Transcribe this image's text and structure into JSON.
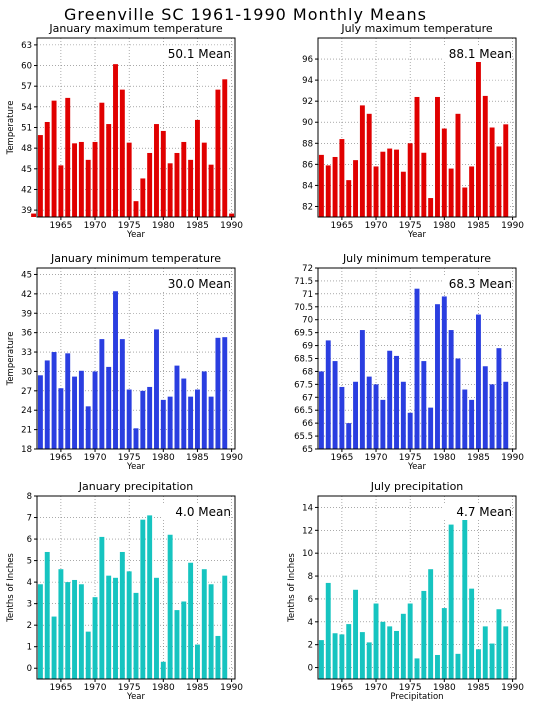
{
  "page_title": "Greenville SC   1961-1990  Monthly Means",
  "colors": {
    "red": "#e00000",
    "blue": "#2a3ee0",
    "teal": "#16c4c0"
  },
  "chart_data": [
    {
      "type": "bar",
      "title": "January maximum temperature",
      "annotation": "50.1 Mean",
      "ylabel": "Temperature",
      "xlabel": "Year",
      "color": "red",
      "grid": true,
      "x": [
        1961,
        1962,
        1963,
        1964,
        1965,
        1966,
        1967,
        1968,
        1969,
        1970,
        1971,
        1972,
        1973,
        1974,
        1975,
        1976,
        1977,
        1978,
        1979,
        1980,
        1981,
        1982,
        1983,
        1984,
        1985,
        1986,
        1987,
        1988,
        1989,
        1990
      ],
      "values": [
        38.5,
        49.9,
        51.8,
        54.9,
        45.5,
        55.3,
        48.7,
        48.9,
        46.3,
        48.9,
        54.6,
        51.5,
        60.2,
        56.5,
        48.8,
        40.3,
        43.6,
        47.3,
        51.5,
        50.5,
        45.8,
        47.3,
        48.9,
        46.3,
        52.1,
        48.8,
        45.6,
        56.5,
        58.0,
        38.5
      ],
      "ylim": [
        38,
        64
      ],
      "yticks": [
        39,
        42,
        45,
        48,
        51,
        54,
        57,
        60,
        63
      ],
      "xticks": [
        1965,
        1970,
        1975,
        1980,
        1985,
        1990
      ]
    },
    {
      "type": "bar",
      "title": "July maximum temperature",
      "annotation": "88.1 Mean",
      "ylabel": "",
      "xlabel": "Year",
      "color": "red",
      "grid": true,
      "x": [
        1961,
        1962,
        1963,
        1964,
        1965,
        1966,
        1967,
        1968,
        1969,
        1970,
        1971,
        1972,
        1973,
        1974,
        1975,
        1976,
        1977,
        1978,
        1979,
        1980,
        1981,
        1982,
        1983,
        1984,
        1985,
        1986,
        1987,
        1988,
        1989,
        1990
      ],
      "values": [
        81.0,
        86.9,
        85.9,
        86.7,
        88.4,
        84.5,
        86.4,
        91.6,
        90.8,
        85.8,
        87.2,
        87.5,
        87.4,
        85.3,
        88.0,
        92.4,
        87.1,
        82.8,
        92.4,
        89.4,
        85.6,
        90.8,
        83.8,
        85.8,
        96.0,
        92.5,
        89.5,
        87.7,
        89.8,
        81.0
      ],
      "ylim": [
        81,
        98
      ],
      "yticks": [
        82,
        84,
        86,
        88,
        90,
        92,
        94,
        96
      ],
      "xticks": [
        1965,
        1970,
        1975,
        1980,
        1985,
        1990
      ]
    },
    {
      "type": "bar",
      "title": "January minimum temperature",
      "annotation": "30.0 Mean",
      "ylabel": "Temperature",
      "xlabel": "Year",
      "color": "blue",
      "grid": true,
      "x": [
        1961,
        1962,
        1963,
        1964,
        1965,
        1966,
        1967,
        1968,
        1969,
        1970,
        1971,
        1972,
        1973,
        1974,
        1975,
        1976,
        1977,
        1978,
        1979,
        1980,
        1981,
        1982,
        1983,
        1984,
        1985,
        1986,
        1987,
        1988,
        1989,
        1990
      ],
      "values": [
        18.0,
        29.4,
        31.7,
        33.0,
        27.4,
        32.8,
        29.2,
        30.1,
        24.6,
        30.0,
        35.0,
        30.7,
        42.4,
        35.0,
        27.2,
        21.2,
        27.0,
        27.6,
        36.5,
        25.6,
        26.1,
        30.9,
        28.9,
        26.1,
        27.2,
        30.0,
        26.1,
        35.2,
        35.3,
        18.0
      ],
      "ylim": [
        18,
        46
      ],
      "yticks": [
        18,
        21,
        24,
        27,
        30,
        33,
        36,
        39,
        42,
        45
      ],
      "xticks": [
        1965,
        1970,
        1975,
        1980,
        1985,
        1990
      ]
    },
    {
      "type": "bar",
      "title": "July minimum temperature",
      "annotation": "68.3 Mean",
      "ylabel": "",
      "xlabel": "Year",
      "color": "blue",
      "grid": true,
      "x": [
        1961,
        1962,
        1963,
        1964,
        1965,
        1966,
        1967,
        1968,
        1969,
        1970,
        1971,
        1972,
        1973,
        1974,
        1975,
        1976,
        1977,
        1978,
        1979,
        1980,
        1981,
        1982,
        1983,
        1984,
        1985,
        1986,
        1987,
        1988,
        1989,
        1990
      ],
      "values": [
        65.0,
        68.0,
        69.2,
        68.4,
        67.4,
        66.0,
        67.6,
        69.6,
        67.8,
        67.5,
        66.9,
        68.8,
        68.6,
        67.6,
        66.4,
        71.2,
        68.4,
        66.6,
        70.6,
        70.9,
        69.6,
        68.5,
        67.3,
        66.9,
        70.2,
        68.2,
        67.5,
        68.9,
        67.6,
        65.0
      ],
      "ylim": [
        65,
        72
      ],
      "yticks": [
        65,
        65.5,
        66,
        66.5,
        67,
        67.5,
        68,
        68.5,
        69,
        69.5,
        70,
        70.5,
        71,
        71.5,
        72
      ],
      "xticks": [
        1965,
        1970,
        1975,
        1980,
        1985,
        1990
      ]
    },
    {
      "type": "bar",
      "title": "January precipitation",
      "annotation": "4.0 Mean",
      "ylabel": "Tenths of Inches",
      "xlabel": "Year",
      "color": "teal",
      "grid": true,
      "x": [
        1961,
        1962,
        1963,
        1964,
        1965,
        1966,
        1967,
        1968,
        1969,
        1970,
        1971,
        1972,
        1973,
        1974,
        1975,
        1976,
        1977,
        1978,
        1979,
        1980,
        1981,
        1982,
        1983,
        1984,
        1985,
        1986,
        1987,
        1988,
        1989,
        1990
      ],
      "values": [
        -0.5,
        3.9,
        5.4,
        2.4,
        4.6,
        4.0,
        4.1,
        3.9,
        1.7,
        3.3,
        6.1,
        4.3,
        4.2,
        5.4,
        4.5,
        3.5,
        6.9,
        7.1,
        4.2,
        0.3,
        6.2,
        2.7,
        3.1,
        4.9,
        1.1,
        4.6,
        3.9,
        1.5,
        4.3,
        -0.5
      ],
      "ylim": [
        -0.5,
        8
      ],
      "yticks": [
        0,
        1,
        2,
        3,
        4,
        5,
        6,
        7,
        8
      ],
      "xticks": [
        1965,
        1970,
        1975,
        1980,
        1985,
        1990
      ]
    },
    {
      "type": "bar",
      "title": "July precipitation",
      "annotation": "4.7 Mean",
      "ylabel": "Tenths of Inches",
      "xlabel": "Precipitation",
      "color": "teal",
      "grid": true,
      "x": [
        1961,
        1962,
        1963,
        1964,
        1965,
        1966,
        1967,
        1968,
        1969,
        1970,
        1971,
        1972,
        1973,
        1974,
        1975,
        1976,
        1977,
        1978,
        1979,
        1980,
        1981,
        1982,
        1983,
        1984,
        1985,
        1986,
        1987,
        1988,
        1989,
        1990
      ],
      "values": [
        -1.0,
        2.4,
        7.4,
        3.0,
        2.9,
        3.8,
        6.8,
        3.1,
        2.2,
        5.6,
        4.0,
        3.6,
        3.2,
        4.7,
        5.6,
        0.8,
        6.7,
        8.6,
        1.1,
        5.2,
        12.5,
        1.2,
        13.5,
        6.9,
        1.6,
        3.6,
        2.1,
        5.1,
        3.6,
        -1.0
      ],
      "ylim": [
        -1,
        15
      ],
      "yticks": [
        0,
        2,
        4,
        6,
        8,
        10,
        12,
        14
      ],
      "xticks": [
        1965,
        1970,
        1975,
        1980,
        1985,
        1990
      ]
    }
  ]
}
